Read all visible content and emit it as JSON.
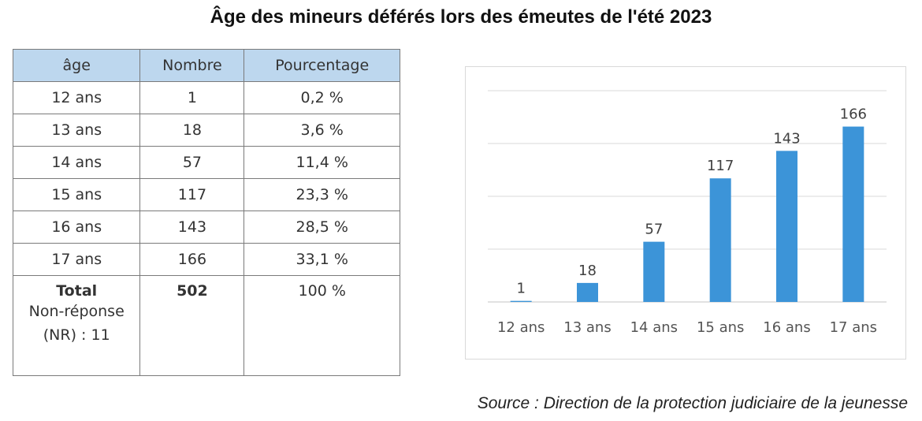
{
  "title": "Âge des mineurs déférés lors des émeutes de l'été 2023",
  "table": {
    "headers": [
      "âge",
      "Nombre",
      "Pourcentage"
    ],
    "rows": [
      [
        "12 ans",
        "1",
        "0,2 %"
      ],
      [
        "13 ans",
        "18",
        "3,6 %"
      ],
      [
        "14 ans",
        "57",
        "11,4 %"
      ],
      [
        "15 ans",
        "117",
        "23,3 %"
      ],
      [
        "16 ans",
        "143",
        "28,5 %"
      ],
      [
        "17 ans",
        "166",
        "33,1 %"
      ]
    ],
    "total_label": "Total",
    "total_number": "502",
    "total_percent": "100 %",
    "nr_line1": "Non-réponse",
    "nr_line2": "(NR) : 11"
  },
  "chart_data": {
    "type": "bar",
    "categories": [
      "12 ans",
      "13 ans",
      "14 ans",
      "15 ans",
      "16 ans",
      "17 ans"
    ],
    "values": [
      1,
      18,
      57,
      117,
      143,
      166
    ],
    "data_labels": [
      "1",
      "18",
      "57",
      "117",
      "143",
      "166"
    ],
    "ylim": [
      0,
      200
    ],
    "grid": true,
    "bar_color": "#3c94d8",
    "grid_color": "#d9d9d9"
  },
  "source": "Source : Direction de la protection judiciaire de la jeunesse"
}
